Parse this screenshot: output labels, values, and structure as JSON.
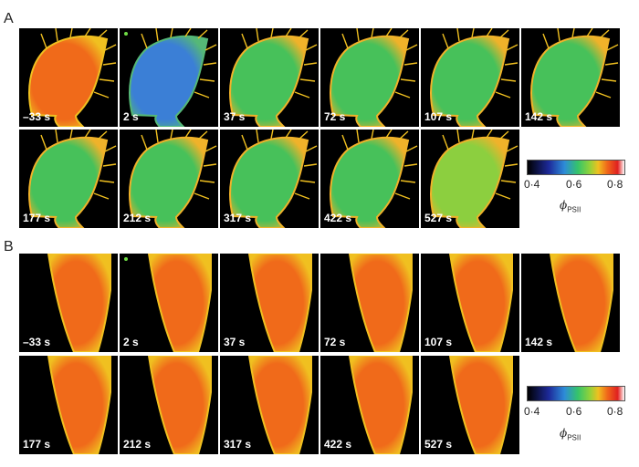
{
  "panel_a": {
    "label": "A",
    "times": [
      "–33 s",
      "2 s",
      "37 s",
      "72 s",
      "107 s",
      "142 s",
      "177 s",
      "212 s",
      "317 s",
      "422 s",
      "527 s"
    ]
  },
  "panel_b": {
    "label": "B",
    "times": [
      "–33 s",
      "2 s",
      "37 s",
      "72 s",
      "107 s",
      "142 s",
      "177 s",
      "212 s",
      "317 s",
      "422 s",
      "527 s"
    ]
  },
  "colorbar": {
    "ticks": [
      "0·4",
      "0·6",
      "0·8"
    ],
    "symbol": "ϕ",
    "subscript": "PSII",
    "colors": [
      "#000000",
      "#1d2a9a",
      "#2d8bd8",
      "#35c46a",
      "#8fd23a",
      "#f0c020",
      "#f06a1a",
      "#e02020",
      "#ffffff"
    ]
  },
  "stimulus_marker_color": "#6fdc45"
}
